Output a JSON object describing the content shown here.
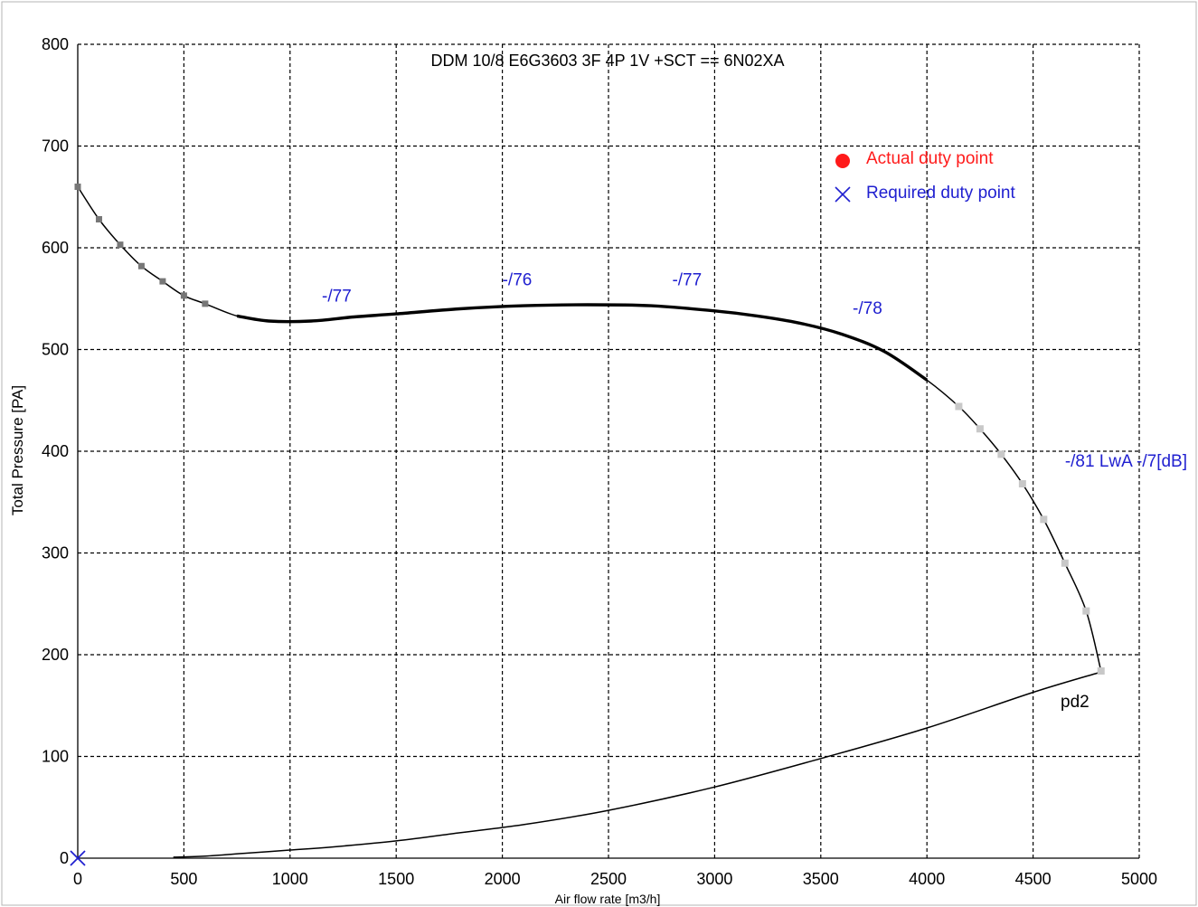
{
  "colors": {
    "background": "#ffffff",
    "grid": "#000000",
    "curve": "#000000",
    "point_dark": "#777777",
    "point_light": "#c8c8c8",
    "annotation": "#2020d0",
    "actual_duty": "#ff1a1a",
    "required_duty": "#2020d0",
    "ylabel_color": "#1f1f5f"
  },
  "chart_data": {
    "type": "line",
    "title": "DDM 10/8 E6G3603 3F 4P 1V +SCT == 6N02XA",
    "xlabel": "Air flow rate [m3/h]",
    "ylabel": "Total Pressure [PA]",
    "xlim": [
      0,
      5000
    ],
    "ylim": [
      0,
      800
    ],
    "xticks": [
      "0",
      "500",
      "1000",
      "1500",
      "2000",
      "2500",
      "3000",
      "3500",
      "4000",
      "4500",
      "5000"
    ],
    "yticks": [
      "0",
      "100",
      "200",
      "300",
      "400",
      "500",
      "600",
      "700",
      "800"
    ],
    "grid": true,
    "legend_position": "top-right",
    "legend": [
      {
        "name": "Actual duty point",
        "marker": "filled-circle",
        "color": "#ff1a1a"
      },
      {
        "name": "Required duty point",
        "marker": "cross",
        "color": "#2020d0"
      }
    ],
    "series": [
      {
        "role": "fan-curve",
        "x": [
          0,
          100,
          200,
          300,
          400,
          500,
          600,
          750,
          900,
          1100,
          1300,
          1500,
          1800,
          2100,
          2400,
          2700,
          3000,
          3200,
          3400,
          3600,
          3800,
          4000,
          4150,
          4250,
          4350,
          4450,
          4550,
          4650,
          4750,
          4820
        ],
        "y": [
          660,
          628,
          603,
          582,
          567,
          553,
          545,
          533,
          528,
          528,
          532,
          535,
          540,
          543,
          544,
          543,
          538,
          533,
          526,
          515,
          498,
          470,
          444,
          422,
          397,
          368,
          333,
          290,
          243,
          184
        ],
        "thick_range": [
          700,
          4100
        ]
      },
      {
        "role": "pd2-curve",
        "label": "pd2",
        "x": [
          450,
          600,
          800,
          1000,
          1200,
          1500,
          1800,
          2100,
          2500,
          3000,
          3500,
          4000,
          4500,
          4820
        ],
        "y": [
          1,
          2,
          5,
          8,
          11,
          17,
          25,
          33,
          47,
          70,
          98,
          128,
          163,
          183
        ]
      }
    ],
    "markers": {
      "dark": [
        [
          0,
          660
        ],
        [
          100,
          628
        ],
        [
          200,
          603
        ],
        [
          300,
          582
        ],
        [
          400,
          567
        ],
        [
          500,
          553
        ],
        [
          600,
          545
        ]
      ],
      "light": [
        [
          4150,
          444
        ],
        [
          4250,
          422
        ],
        [
          4350,
          397
        ],
        [
          4450,
          368
        ],
        [
          4550,
          333
        ],
        [
          4650,
          290
        ],
        [
          4750,
          243
        ],
        [
          4820,
          184
        ]
      ]
    },
    "required_duty_point": {
      "x": 0,
      "y": 0
    },
    "annotations": [
      {
        "text": "-/77",
        "x": 1150,
        "y": 547
      },
      {
        "text": "-/76",
        "x": 2000,
        "y": 563
      },
      {
        "text": "-/77",
        "x": 2800,
        "y": 563
      },
      {
        "text": "-/78",
        "x": 3650,
        "y": 535
      },
      {
        "text": "-/81 LwA -/7[dB]",
        "x": 4650,
        "y": 385
      }
    ]
  }
}
